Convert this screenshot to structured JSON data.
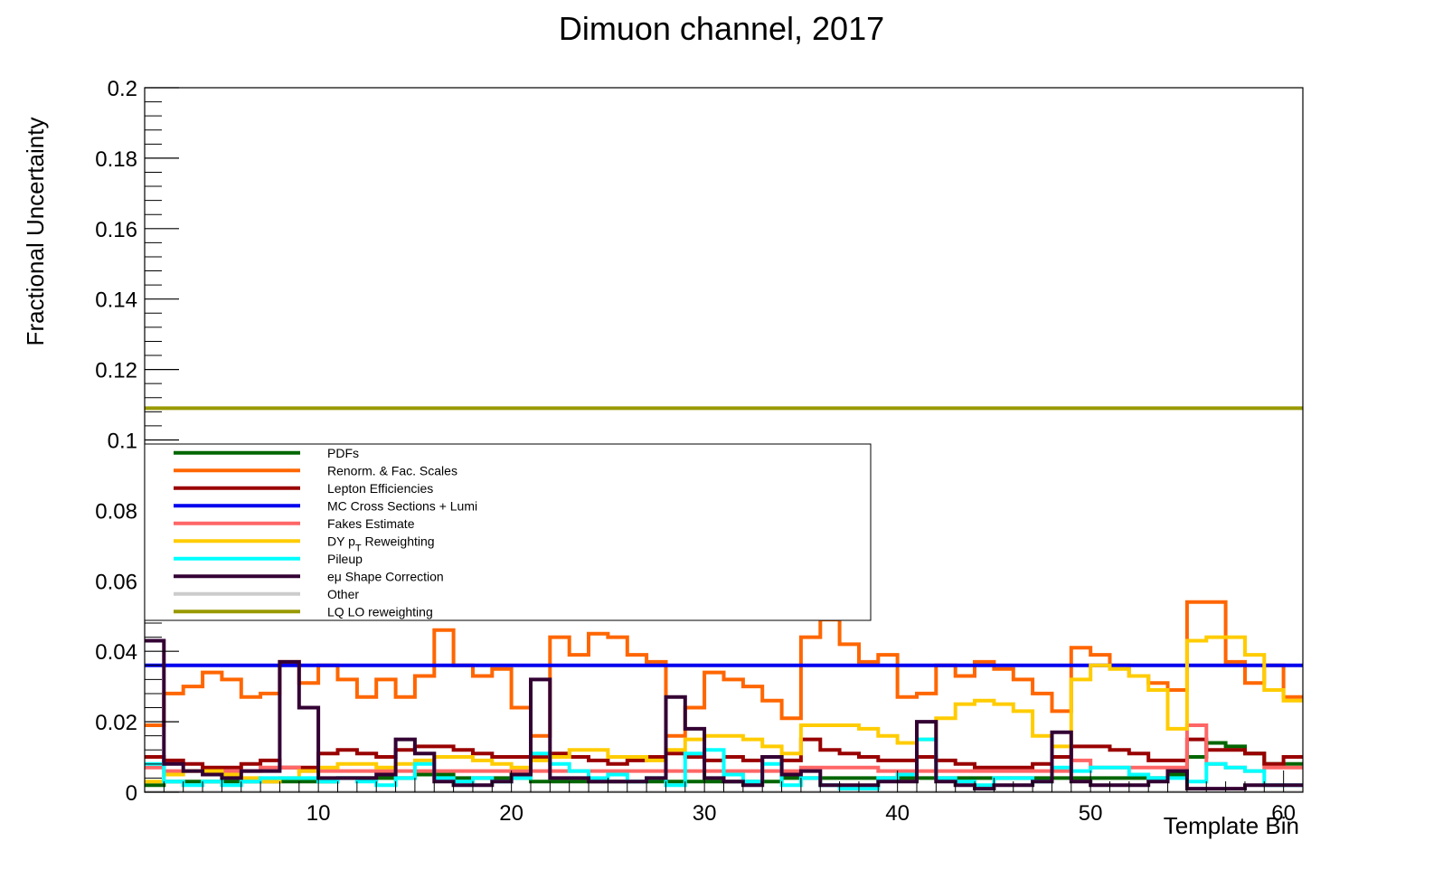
{
  "chart_data": {
    "type": "line",
    "style": "step",
    "title": "Dimuon channel, 2017",
    "xlabel": "Template Bin",
    "ylabel": "Fractional Uncertainty",
    "xlim": [
      1,
      61
    ],
    "ylim": [
      0,
      0.2
    ],
    "x_bins": [
      1,
      2,
      3,
      4,
      5,
      6,
      7,
      8,
      9,
      10,
      11,
      12,
      13,
      14,
      15,
      16,
      17,
      18,
      19,
      20,
      21,
      22,
      23,
      24,
      25,
      26,
      27,
      28,
      29,
      30,
      31,
      32,
      33,
      34,
      35,
      36,
      37,
      38,
      39,
      40,
      41,
      42,
      43,
      44,
      45,
      46,
      47,
      48,
      49,
      50,
      51,
      52,
      53,
      54,
      55,
      56,
      57,
      58,
      59,
      60
    ],
    "x_ticks": [
      10,
      20,
      30,
      40,
      50,
      60
    ],
    "x_tick_labels": [
      "10",
      "20",
      "30",
      "40",
      "50",
      "60"
    ],
    "y_ticks": [
      0,
      0.02,
      0.04,
      0.06,
      0.08,
      0.1,
      0.12,
      0.14,
      0.16,
      0.18,
      0.2
    ],
    "y_tick_labels": [
      "0",
      "0.02",
      "0.04",
      "0.06",
      "0.08",
      "0.1",
      "0.12",
      "0.14",
      "0.16",
      "0.18",
      "0.2"
    ],
    "grid": false,
    "legend_position": "upper-left",
    "series": [
      {
        "name": "PDFs",
        "color": "#006600",
        "values": [
          0.002,
          0.003,
          0.003,
          0.003,
          0.003,
          0.003,
          0.003,
          0.003,
          0.003,
          0.003,
          0.004,
          0.004,
          0.004,
          0.004,
          0.005,
          0.005,
          0.004,
          0.004,
          0.004,
          0.004,
          0.003,
          0.003,
          0.003,
          0.003,
          0.003,
          0.003,
          0.003,
          0.003,
          0.003,
          0.003,
          0.003,
          0.003,
          0.003,
          0.004,
          0.004,
          0.004,
          0.004,
          0.004,
          0.004,
          0.004,
          0.004,
          0.004,
          0.004,
          0.004,
          0.004,
          0.004,
          0.004,
          0.004,
          0.004,
          0.004,
          0.004,
          0.004,
          0.004,
          0.005,
          0.01,
          0.014,
          0.013,
          0.011,
          0.008,
          0.008
        ]
      },
      {
        "name": "Renorm. & Fac. Scales",
        "color": "#ff6600",
        "values": [
          0.019,
          0.028,
          0.03,
          0.034,
          0.032,
          0.027,
          0.028,
          0.037,
          0.031,
          0.036,
          0.032,
          0.027,
          0.032,
          0.027,
          0.033,
          0.046,
          0.036,
          0.033,
          0.035,
          0.024,
          0.016,
          0.044,
          0.039,
          0.045,
          0.044,
          0.039,
          0.037,
          0.016,
          0.024,
          0.034,
          0.032,
          0.03,
          0.026,
          0.021,
          0.044,
          0.049,
          0.042,
          0.037,
          0.039,
          0.027,
          0.028,
          0.036,
          0.033,
          0.037,
          0.035,
          0.032,
          0.028,
          0.023,
          0.041,
          0.039,
          0.036,
          0.033,
          0.031,
          0.029,
          0.054,
          0.054,
          0.037,
          0.031,
          0.036,
          0.027
        ]
      },
      {
        "name": "Lepton Efficiencies",
        "color": "#990000",
        "values": [
          0.01,
          0.009,
          0.008,
          0.007,
          0.007,
          0.008,
          0.009,
          0.007,
          0.007,
          0.011,
          0.012,
          0.011,
          0.01,
          0.012,
          0.013,
          0.013,
          0.012,
          0.011,
          0.01,
          0.01,
          0.01,
          0.011,
          0.01,
          0.009,
          0.008,
          0.009,
          0.01,
          0.011,
          0.01,
          0.009,
          0.01,
          0.009,
          0.01,
          0.009,
          0.015,
          0.012,
          0.011,
          0.01,
          0.009,
          0.009,
          0.01,
          0.009,
          0.008,
          0.007,
          0.007,
          0.007,
          0.008,
          0.01,
          0.013,
          0.013,
          0.012,
          0.011,
          0.009,
          0.009,
          0.015,
          0.012,
          0.012,
          0.011,
          0.008,
          0.01
        ]
      },
      {
        "name": "MC Cross Sections + Lumi",
        "color": "#0000ee",
        "values": [
          0.036,
          0.036,
          0.036,
          0.036,
          0.036,
          0.036,
          0.036,
          0.036,
          0.036,
          0.036,
          0.036,
          0.036,
          0.036,
          0.036,
          0.036,
          0.036,
          0.036,
          0.036,
          0.036,
          0.036,
          0.036,
          0.036,
          0.036,
          0.036,
          0.036,
          0.036,
          0.036,
          0.036,
          0.036,
          0.036,
          0.036,
          0.036,
          0.036,
          0.036,
          0.036,
          0.036,
          0.036,
          0.036,
          0.036,
          0.036,
          0.036,
          0.036,
          0.036,
          0.036,
          0.036,
          0.036,
          0.036,
          0.036,
          0.036,
          0.036,
          0.036,
          0.036,
          0.036,
          0.036,
          0.036,
          0.036,
          0.036,
          0.036,
          0.036,
          0.036
        ]
      },
      {
        "name": "Fakes Estimate",
        "color": "#ff6666",
        "values": [
          0.007,
          0.006,
          0.006,
          0.006,
          0.006,
          0.006,
          0.007,
          0.007,
          0.006,
          0.006,
          0.006,
          0.006,
          0.006,
          0.006,
          0.006,
          0.006,
          0.006,
          0.006,
          0.006,
          0.006,
          0.006,
          0.006,
          0.006,
          0.006,
          0.006,
          0.006,
          0.006,
          0.006,
          0.006,
          0.006,
          0.006,
          0.006,
          0.006,
          0.006,
          0.007,
          0.007,
          0.007,
          0.007,
          0.006,
          0.006,
          0.006,
          0.006,
          0.006,
          0.006,
          0.006,
          0.006,
          0.006,
          0.006,
          0.009,
          0.007,
          0.007,
          0.007,
          0.007,
          0.007,
          0.019,
          0.008,
          0.007,
          0.006,
          0.007,
          0.007
        ]
      },
      {
        "name": "DY p_T Reweighting",
        "color": "#ffcc00",
        "values": [
          0.003,
          0.005,
          0.006,
          0.006,
          0.005,
          0.004,
          0.003,
          0.004,
          0.006,
          0.007,
          0.008,
          0.008,
          0.007,
          0.008,
          0.009,
          0.01,
          0.01,
          0.009,
          0.008,
          0.007,
          0.009,
          0.01,
          0.012,
          0.012,
          0.01,
          0.01,
          0.009,
          0.012,
          0.015,
          0.016,
          0.016,
          0.015,
          0.013,
          0.011,
          0.019,
          0.019,
          0.019,
          0.018,
          0.016,
          0.014,
          0.015,
          0.021,
          0.025,
          0.026,
          0.025,
          0.023,
          0.016,
          0.013,
          0.032,
          0.036,
          0.035,
          0.033,
          0.029,
          0.018,
          0.043,
          0.044,
          0.044,
          0.039,
          0.029,
          0.026
        ]
      },
      {
        "name": "Pileup",
        "color": "#00ffff",
        "values": [
          0.008,
          0.003,
          0.002,
          0.003,
          0.002,
          0.003,
          0.004,
          0.004,
          0.004,
          0.003,
          0.004,
          0.003,
          0.002,
          0.004,
          0.008,
          0.004,
          0.003,
          0.004,
          0.003,
          0.004,
          0.011,
          0.008,
          0.006,
          0.004,
          0.005,
          0.003,
          0.004,
          0.002,
          0.011,
          0.012,
          0.005,
          0.003,
          0.008,
          0.002,
          0.004,
          0.002,
          0.001,
          0.001,
          0.004,
          0.005,
          0.015,
          0.004,
          0.003,
          0.002,
          0.004,
          0.004,
          0.003,
          0.007,
          0.006,
          0.007,
          0.007,
          0.005,
          0.004,
          0.004,
          0.003,
          0.008,
          0.007,
          0.006,
          0.002,
          0.002
        ]
      },
      {
        "name": "eμ Shape Correction",
        "color": "#330033",
        "values": [
          0.043,
          0.008,
          0.006,
          0.005,
          0.004,
          0.006,
          0.006,
          0.037,
          0.024,
          0.004,
          0.004,
          0.004,
          0.005,
          0.015,
          0.011,
          0.003,
          0.002,
          0.002,
          0.003,
          0.005,
          0.032,
          0.004,
          0.004,
          0.003,
          0.003,
          0.003,
          0.004,
          0.027,
          0.018,
          0.004,
          0.003,
          0.002,
          0.01,
          0.005,
          0.006,
          0.002,
          0.002,
          0.002,
          0.003,
          0.003,
          0.02,
          0.003,
          0.002,
          0.001,
          0.002,
          0.002,
          0.003,
          0.017,
          0.003,
          0.002,
          0.002,
          0.002,
          0.003,
          0.006,
          0.001,
          0.001,
          0.001,
          0.002,
          0.002,
          0.002
        ]
      },
      {
        "name": "Other",
        "color": "#cccccc",
        "values": [
          0,
          0,
          0,
          0,
          0,
          0,
          0,
          0,
          0,
          0,
          0,
          0,
          0,
          0,
          0,
          0,
          0,
          0,
          0,
          0,
          0,
          0,
          0,
          0,
          0,
          0,
          0,
          0,
          0,
          0,
          0,
          0,
          0,
          0,
          0,
          0,
          0,
          0,
          0,
          0,
          0,
          0,
          0,
          0,
          0,
          0,
          0,
          0,
          0,
          0,
          0,
          0,
          0,
          0,
          0,
          0,
          0,
          0,
          0,
          0
        ]
      },
      {
        "name": "LQ LO reweighting",
        "color": "#999900",
        "values": [
          0.109,
          0.109,
          0.109,
          0.109,
          0.109,
          0.109,
          0.109,
          0.109,
          0.109,
          0.109,
          0.109,
          0.109,
          0.109,
          0.109,
          0.109,
          0.109,
          0.109,
          0.109,
          0.109,
          0.109,
          0.109,
          0.109,
          0.109,
          0.109,
          0.109,
          0.109,
          0.109,
          0.109,
          0.109,
          0.109,
          0.109,
          0.109,
          0.109,
          0.109,
          0.109,
          0.109,
          0.109,
          0.109,
          0.109,
          0.109,
          0.109,
          0.109,
          0.109,
          0.109,
          0.109,
          0.109,
          0.109,
          0.109,
          0.109,
          0.109,
          0.109,
          0.109,
          0.109,
          0.109,
          0.109,
          0.109,
          0.109,
          0.109,
          0.109,
          0.109
        ]
      }
    ]
  }
}
